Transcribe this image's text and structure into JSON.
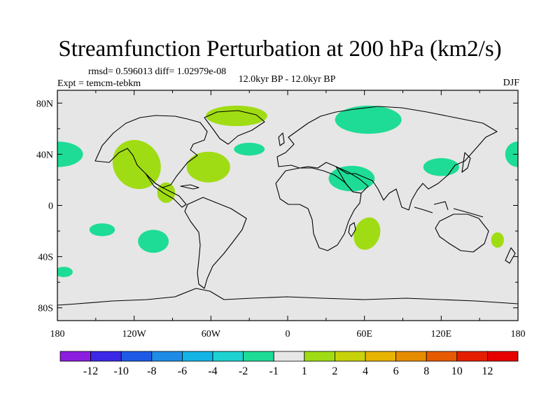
{
  "header": {
    "title": "Streamfunction Perturbation at 200 hPa (km2/s)",
    "stats": "rmsd= 0.596013 diff= 1.02979e-08",
    "experiment": "Expt = temcm-tebkm",
    "period": "12.0kyr BP - 12.0kyr BP",
    "season": "DJF"
  },
  "chart_data": {
    "type": "contour-map",
    "title": "Streamfunction Perturbation at 200 hPa (km2/s)",
    "variable": "streamfunction perturbation",
    "level": "200 hPa",
    "units": "km2/s",
    "projection": "cylindrical equidistant",
    "lon_range": [
      -180,
      180
    ],
    "lat_range": [
      -90,
      90
    ],
    "x_ticks": [
      {
        "lon": -180,
        "label": "180"
      },
      {
        "lon": -120,
        "label": "120W"
      },
      {
        "lon": -60,
        "label": "60W"
      },
      {
        "lon": 0,
        "label": "0"
      },
      {
        "lon": 60,
        "label": "60E"
      },
      {
        "lon": 120,
        "label": "120E"
      },
      {
        "lon": 180,
        "label": "180"
      }
    ],
    "y_ticks": [
      {
        "lat": 80,
        "label": "80N"
      },
      {
        "lat": 40,
        "label": "40N"
      },
      {
        "lat": 0,
        "label": "0"
      },
      {
        "lat": -40,
        "label": "40S"
      },
      {
        "lat": -80,
        "label": "80S"
      }
    ],
    "colorbar": {
      "labels": [
        "-12",
        "-10",
        "-8",
        "-6",
        "-4",
        "-2",
        "-1",
        "1",
        "2",
        "4",
        "6",
        "8",
        "10",
        "12"
      ],
      "colors": [
        "#8c1ee0",
        "#3c28e6",
        "#1e5ae6",
        "#1e8ce6",
        "#14b4e6",
        "#1ed2d2",
        "#1edc96",
        "#e6e6e6",
        "#a0dc14",
        "#c8d20a",
        "#e6b400",
        "#e68c00",
        "#e65a00",
        "#e61e00",
        "#e60000"
      ]
    },
    "regions": [
      {
        "name": "Aleutian negative",
        "value_class": "-2 to -1",
        "center": [
          -180,
          40
        ],
        "color": "#1edc96"
      },
      {
        "name": "Aleutian negative (wrap)",
        "value_class": "-2 to -1",
        "center": [
          180,
          40
        ],
        "color": "#1edc96"
      },
      {
        "name": "North America west positive",
        "value_class": "1 to 2",
        "center": [
          -118,
          32
        ],
        "color": "#a0dc14"
      },
      {
        "name": "Greenland positive",
        "value_class": "1 to 2",
        "center": [
          -40,
          70
        ],
        "color": "#a0dc14"
      },
      {
        "name": "Caribbean positive",
        "value_class": "1 to 2",
        "center": [
          -62,
          30
        ],
        "color": "#a0dc14"
      },
      {
        "name": "Central America positive",
        "value_class": "1 to 2",
        "center": [
          -95,
          10
        ],
        "color": "#a0dc14"
      },
      {
        "name": "Mid-Atlantic negative",
        "value_class": "-2 to -1",
        "center": [
          -30,
          44
        ],
        "color": "#1edc96"
      },
      {
        "name": "Siberia negative",
        "value_class": "-2 to -1",
        "center": [
          63,
          67
        ],
        "color": "#1edc96"
      },
      {
        "name": "Arabia negative",
        "value_class": "-2 to -1",
        "center": [
          50,
          21
        ],
        "color": "#1edc96"
      },
      {
        "name": "East Asia negative",
        "value_class": "-2 to -1",
        "center": [
          120,
          30
        ],
        "color": "#1edc96"
      },
      {
        "name": "South Indian Ocean positive",
        "value_class": "1 to 2",
        "center": [
          62,
          -22
        ],
        "color": "#a0dc14"
      },
      {
        "name": "Australia east positive",
        "value_class": "1 to 2",
        "center": [
          164,
          -27
        ],
        "color": "#a0dc14"
      },
      {
        "name": "South Pacific negative",
        "value_class": "-2 to -1",
        "center": [
          -145,
          -19
        ],
        "color": "#1edc96"
      },
      {
        "name": "South Pacific east negative",
        "value_class": "-2 to -1",
        "center": [
          -105,
          -28
        ],
        "color": "#1edc96"
      },
      {
        "name": "Southern Ocean negative",
        "value_class": "-2 to -1",
        "center": [
          -175,
          -52
        ],
        "color": "#1edc96"
      }
    ]
  }
}
